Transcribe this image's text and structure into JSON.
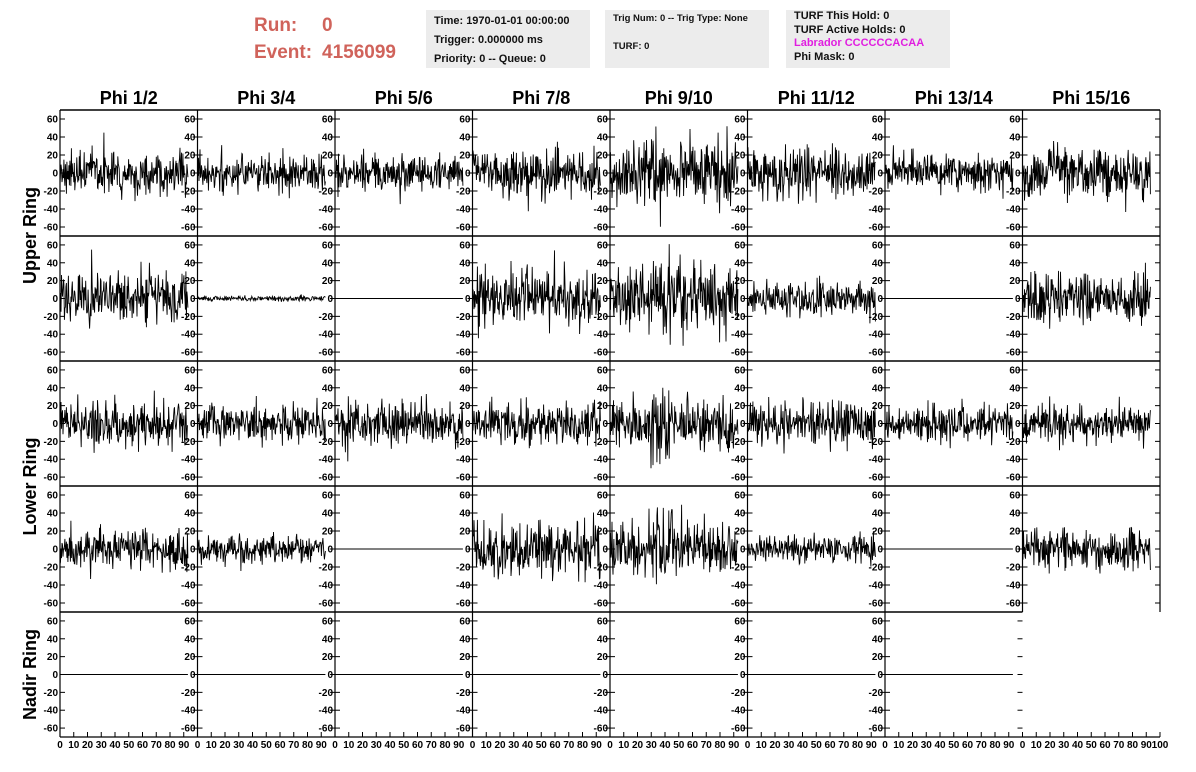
{
  "header": {
    "run_label": "Run:",
    "run_value": "0",
    "event_label": "Event:",
    "event_value": "4156099",
    "time_line": "Time: 1970-01-01 00:00:00",
    "trigger_line": "Trigger: 0.000000 ms",
    "priority_line": "Priority: 0 -- Queue: 0",
    "trig_line": "Trig Num: 0 -- Trig Type: None",
    "turf_line": "TURF: 0",
    "turf_hold_line": "TURF This Hold: 0",
    "turf_active_line": "TURF Active Holds: 0",
    "labrador_line": "Labrador CCCCCCACAA",
    "phi_mask_line": "Phi Mask: 0",
    "labrador_color": "#e01ee0",
    "run_color": "#d0635b"
  },
  "chart_data": {
    "type": "line",
    "columns": [
      "Phi 1/2",
      "Phi 3/4",
      "Phi 5/6",
      "Phi 7/8",
      "Phi 9/10",
      "Phi 11/12",
      "Phi 13/14",
      "Phi 15/16"
    ],
    "row_labels": [
      {
        "text": "Upper Ring",
        "spans_rows": [
          0,
          1
        ]
      },
      {
        "text": "Lower Ring",
        "spans_rows": [
          2,
          3
        ]
      },
      {
        "text": "Nadir Ring",
        "spans_rows": [
          4,
          4
        ]
      }
    ],
    "ylim": [
      -70,
      70
    ],
    "y_ticks": [
      -60,
      -40,
      -20,
      0,
      20,
      40,
      60
    ],
    "xlim": [
      0,
      100
    ],
    "x_ticks": [
      0,
      10,
      20,
      30,
      40,
      50,
      60,
      70,
      80,
      90,
      100
    ],
    "samples_per_trace": 260,
    "trace_x_max": 93,
    "amplitude_grid": [
      [
        12,
        10,
        11,
        13,
        17,
        14,
        11,
        14
      ],
      [
        15,
        1.5,
        0,
        16,
        18,
        10,
        0,
        14
      ],
      [
        14,
        11,
        12,
        11,
        15,
        12,
        10,
        10
      ],
      [
        11,
        8,
        0,
        15,
        14,
        7,
        0,
        12
      ],
      [
        0,
        0,
        0,
        0,
        0,
        0,
        0,
        null
      ]
    ],
    "line_color": "#000000",
    "grid": false
  }
}
